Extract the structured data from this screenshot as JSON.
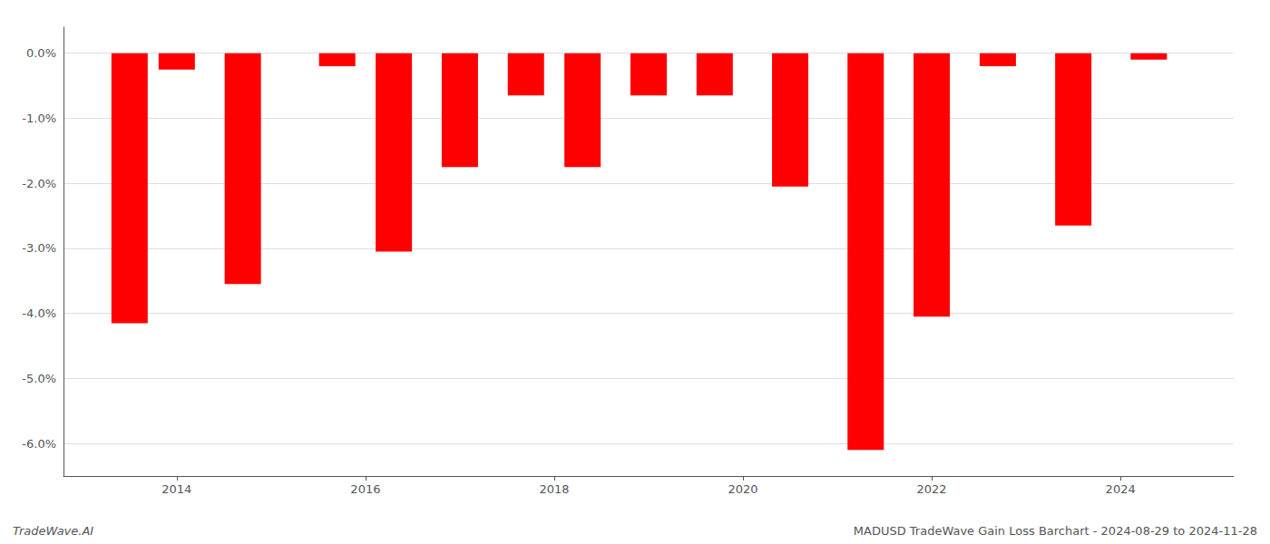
{
  "chart_data": {
    "type": "bar",
    "x": [
      2013.5,
      2014.0,
      2014.7,
      2015.7,
      2016.3,
      2017.0,
      2017.7,
      2018.3,
      2019.0,
      2019.7,
      2020.5,
      2021.3,
      2022.0,
      2022.7,
      2023.5,
      2024.3
    ],
    "values": [
      -4.15,
      -0.25,
      -3.55,
      -0.2,
      -3.05,
      -1.75,
      -0.65,
      -1.75,
      -0.65,
      -0.65,
      -2.05,
      -6.1,
      -4.05,
      -0.2,
      -2.65,
      -0.1
    ],
    "color": "#ff0000",
    "xlim": [
      2012.8,
      2025.2
    ],
    "xticks": [
      2014,
      2016,
      2018,
      2020,
      2022,
      2024
    ],
    "ylim": [
      -6.5,
      0.4
    ],
    "yticks": [
      {
        "value": 0.0,
        "label": "0.0%"
      },
      {
        "value": -1.0,
        "label": "-1.0%"
      },
      {
        "value": -2.0,
        "label": "-2.0%"
      },
      {
        "value": -3.0,
        "label": "-3.0%"
      },
      {
        "value": -4.0,
        "label": "-4.0%"
      },
      {
        "value": -5.0,
        "label": "-5.0%"
      },
      {
        "value": -6.0,
        "label": "-6.0%"
      }
    ],
    "grid": true,
    "annotations": [
      "TradeWave.AI",
      "MADUSD TradeWave Gain Loss Barchart - 2024-08-29 to 2024-11-28"
    ]
  }
}
